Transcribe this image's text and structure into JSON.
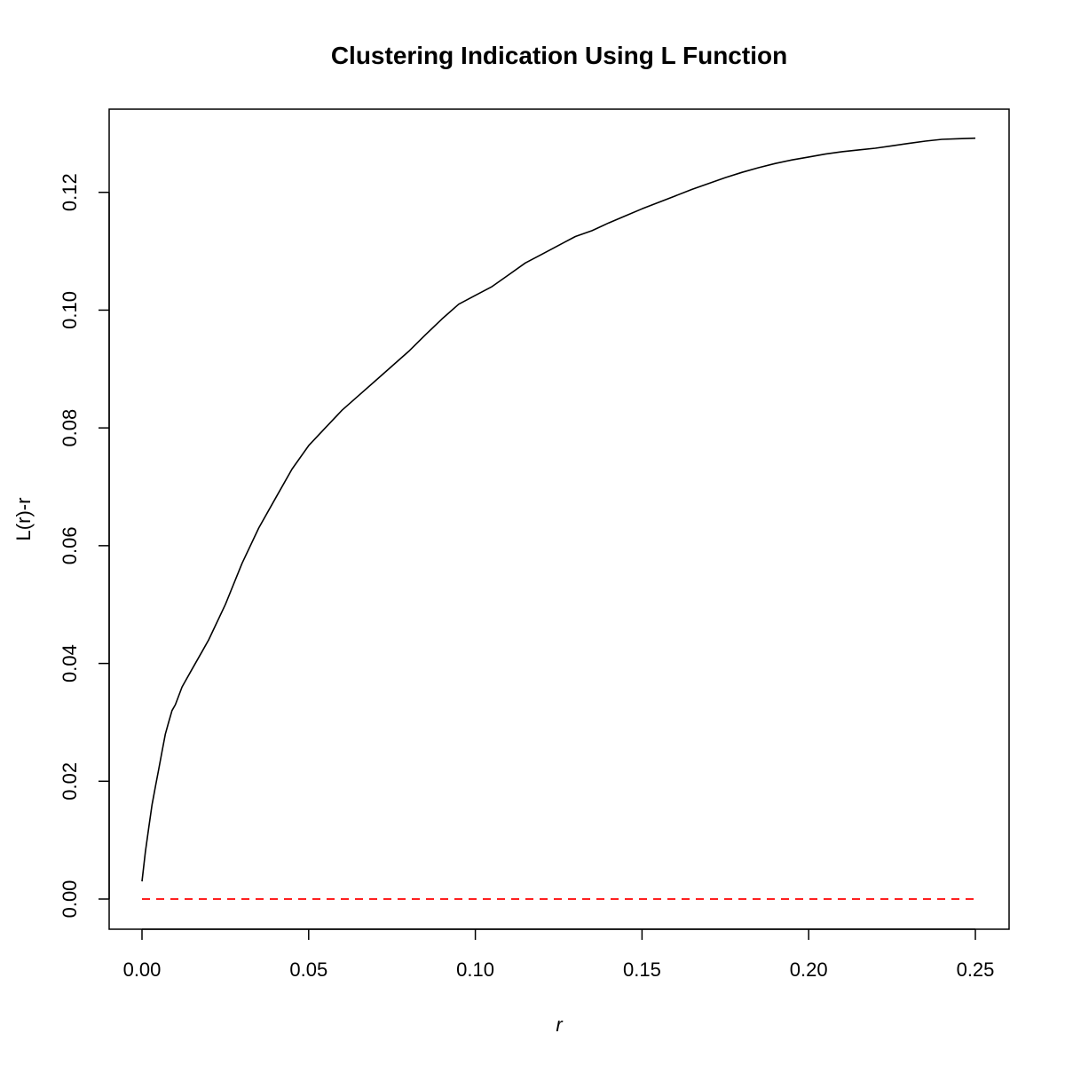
{
  "chart_data": {
    "type": "line",
    "title": "Clustering Indication Using L Function",
    "xlabel": "r",
    "ylabel": "L(r)-r",
    "xlim": [
      0.0,
      0.25
    ],
    "ylim": [
      0.0,
      0.129
    ],
    "x_ticks": [
      "0.00",
      "0.05",
      "0.10",
      "0.15",
      "0.20",
      "0.25"
    ],
    "y_ticks": [
      "0.00",
      "0.02",
      "0.04",
      "0.06",
      "0.08",
      "0.10",
      "0.12"
    ],
    "grid": false,
    "legend": "none",
    "series": [
      {
        "color": "#000000",
        "dash": "solid",
        "x": [
          0.0,
          0.001,
          0.002,
          0.003,
          0.004,
          0.005,
          0.006,
          0.007,
          0.008,
          0.009,
          0.01,
          0.012,
          0.013,
          0.015,
          0.018,
          0.02,
          0.025,
          0.03,
          0.035,
          0.04,
          0.045,
          0.05,
          0.055,
          0.06,
          0.065,
          0.07,
          0.075,
          0.08,
          0.085,
          0.09,
          0.095,
          0.1,
          0.105,
          0.11,
          0.115,
          0.12,
          0.125,
          0.13,
          0.135,
          0.14,
          0.145,
          0.15,
          0.155,
          0.16,
          0.165,
          0.17,
          0.175,
          0.18,
          0.185,
          0.19,
          0.195,
          0.2,
          0.205,
          0.21,
          0.215,
          0.22,
          0.225,
          0.23,
          0.235,
          0.24,
          0.245,
          0.25
        ],
        "y": [
          0.003,
          0.008,
          0.012,
          0.016,
          0.019,
          0.022,
          0.025,
          0.028,
          0.03,
          0.032,
          0.033,
          0.036,
          0.037,
          0.039,
          0.042,
          0.044,
          0.05,
          0.057,
          0.063,
          0.068,
          0.073,
          0.077,
          0.08,
          0.083,
          0.0855,
          0.088,
          0.0905,
          0.093,
          0.0958,
          0.0985,
          0.101,
          0.1025,
          0.104,
          0.106,
          0.108,
          0.1095,
          0.111,
          0.1125,
          0.1135,
          0.1148,
          0.116,
          0.1172,
          0.1183,
          0.1194,
          0.1205,
          0.1215,
          0.1225,
          0.1234,
          0.1242,
          0.1249,
          0.1255,
          0.126,
          0.1265,
          0.1269,
          0.1272,
          0.1275,
          0.1279,
          0.1283,
          0.1287,
          0.129,
          0.1291,
          0.1292
        ]
      },
      {
        "color": "#ff0000",
        "dash": "dashed",
        "x": [
          0.0,
          0.25
        ],
        "y": [
          0.0,
          0.0
        ]
      }
    ]
  }
}
